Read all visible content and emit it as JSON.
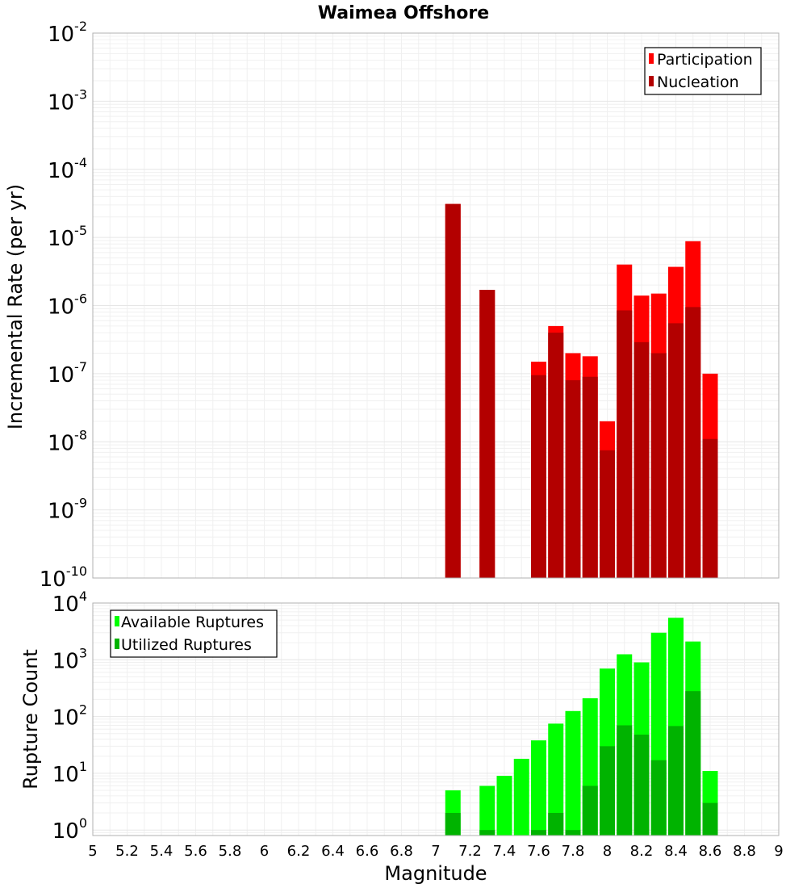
{
  "chart_data": [
    {
      "type": "bar",
      "title": "Waimea Offshore",
      "xlabel": "",
      "ylabel": "Incremental Rate (per yr)",
      "yscale": "log",
      "ylim": [
        1e-10,
        0.01
      ],
      "xlim": [
        5,
        9
      ],
      "x": [
        7.1,
        7.3,
        7.6,
        7.7,
        7.8,
        7.9,
        8.0,
        8.1,
        8.2,
        8.3,
        8.4,
        8.5,
        8.6
      ],
      "series": [
        {
          "name": "Participation",
          "color": "#ff0000",
          "values": [
            3.1e-05,
            1.7e-06,
            1.5e-07,
            5e-07,
            2e-07,
            1.8e-07,
            2e-08,
            4e-06,
            1.4e-06,
            1.5e-06,
            3.7e-06,
            8.8e-06,
            1e-07
          ]
        },
        {
          "name": "Nucleation",
          "color": "#b30000",
          "values": [
            3.1e-05,
            1.7e-06,
            9.5e-08,
            4e-07,
            8e-08,
            9e-08,
            7.5e-09,
            8.5e-07,
            2.9e-07,
            2e-07,
            5.5e-07,
            9.5e-07,
            1.1e-08
          ]
        }
      ],
      "legend_position": "top-right",
      "grid": true
    },
    {
      "type": "bar",
      "title": "",
      "xlabel": "Magnitude",
      "ylabel": "Rupture Count",
      "yscale": "log",
      "ylim": [
        0.8,
        10000
      ],
      "xlim": [
        5,
        9
      ],
      "x": [
        7.1,
        7.3,
        7.4,
        7.5,
        7.6,
        7.7,
        7.8,
        7.9,
        8.0,
        8.1,
        8.2,
        8.3,
        8.4,
        8.5,
        8.6
      ],
      "series": [
        {
          "name": "Available Ruptures",
          "color": "#00ff00",
          "values": [
            5,
            6,
            9,
            18,
            38,
            75,
            125,
            210,
            700,
            1250,
            900,
            3000,
            5500,
            2100,
            11
          ]
        },
        {
          "name": "Utilized Ruptures",
          "color": "#00b300",
          "values": [
            2,
            1,
            0,
            0,
            1,
            2,
            1,
            6,
            30,
            70,
            48,
            17,
            68,
            280,
            3
          ]
        }
      ],
      "legend_position": "top-left",
      "grid": true
    }
  ],
  "x_ticks": [
    "5",
    "5.2",
    "5.4",
    "5.6",
    "5.8",
    "6",
    "6.2",
    "6.4",
    "6.6",
    "6.8",
    "7",
    "7.2",
    "7.4",
    "7.6",
    "7.8",
    "8",
    "8.2",
    "8.4",
    "8.6",
    "8.8",
    "9"
  ],
  "top_y_ticks": [
    {
      "base": "10",
      "exp": "-2"
    },
    {
      "base": "10",
      "exp": "-3"
    },
    {
      "base": "10",
      "exp": "-4"
    },
    {
      "base": "10",
      "exp": "-5"
    },
    {
      "base": "10",
      "exp": "-6"
    },
    {
      "base": "10",
      "exp": "-7"
    },
    {
      "base": "10",
      "exp": "-8"
    },
    {
      "base": "10",
      "exp": "-9"
    },
    {
      "base": "10",
      "exp": "-10"
    }
  ],
  "bottom_y_ticks": [
    {
      "base": "10",
      "exp": "4"
    },
    {
      "base": "10",
      "exp": "3"
    },
    {
      "base": "10",
      "exp": "2"
    },
    {
      "base": "10",
      "exp": "1"
    },
    {
      "base": "10",
      "exp": "0"
    }
  ]
}
